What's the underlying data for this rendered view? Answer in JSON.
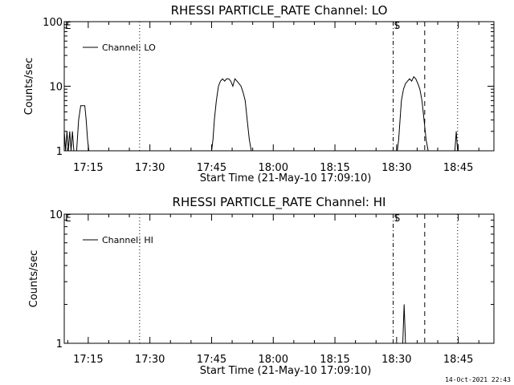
{
  "footer": "14-Oct-2021 22:43",
  "chart_data": [
    {
      "type": "line",
      "title": "RHESSI PARTICLE_RATE Channel: LO",
      "xlabel": "Start Time (21-May-10 17:09:10)",
      "ylabel": "Counts/sec",
      "yscale": "log",
      "ylim": [
        1,
        100
      ],
      "xlim": [
        "17:09:10",
        "18:53:40"
      ],
      "y_ticks": [
        {
          "value": 1,
          "label": "1"
        },
        {
          "value": 10,
          "label": "10"
        },
        {
          "value": 100,
          "label": "100"
        }
      ],
      "x_ticks": [
        "17:15",
        "17:30",
        "17:45",
        "18:00",
        "18:15",
        "18:30",
        "18:45"
      ],
      "legend_position": "top-left",
      "series": [
        {
          "name": "Channel: LO",
          "x": [
            "17:09:10",
            "17:09:30",
            "17:09:50",
            "17:10:10",
            "17:10:30",
            "17:10:50",
            "17:11:10",
            "17:11:30",
            "17:11:50",
            "17:12:10",
            "17:12:40",
            "17:13:10",
            "17:13:40",
            "17:14:10",
            "17:14:30",
            "17:14:50",
            "17:15:10",
            "17:15:30",
            "17:45:00",
            "17:45:20",
            "17:45:40",
            "17:46:10",
            "17:46:40",
            "17:47:10",
            "17:47:40",
            "17:48:10",
            "17:48:40",
            "17:49:10",
            "17:49:40",
            "17:50:10",
            "17:50:40",
            "17:51:10",
            "17:51:40",
            "17:52:10",
            "17:52:40",
            "17:53:10",
            "17:53:40",
            "17:54:10",
            "17:54:40",
            "17:55:10",
            "17:55:40",
            "17:56:10",
            "17:56:40",
            "17:57:10",
            "17:57:40",
            "17:58:10",
            "17:58:40",
            "18:30:10",
            "18:30:30",
            "18:30:50",
            "18:31:10",
            "18:31:40",
            "18:32:10",
            "18:32:40",
            "18:33:10",
            "18:33:40",
            "18:34:10",
            "18:34:40",
            "18:35:10",
            "18:35:40",
            "18:36:10",
            "18:36:40",
            "18:37:10",
            "18:37:40",
            "18:38:10",
            "18:38:30",
            "18:44:10",
            "18:44:30",
            "18:44:50",
            "18:45:10"
          ],
          "values": [
            2,
            1,
            2,
            1,
            2,
            1,
            2,
            1,
            1,
            1,
            3,
            5,
            5,
            5,
            3,
            1.5,
            1,
            1,
            1,
            1.5,
            3,
            6,
            10,
            12,
            13,
            12,
            13,
            13,
            12,
            10,
            13,
            12,
            11,
            10,
            8,
            6,
            3,
            1.5,
            1,
            1,
            1,
            1,
            1,
            1,
            1,
            1,
            1,
            1,
            1.5,
            3,
            6,
            9,
            11,
            12,
            13,
            12,
            14,
            13,
            11,
            9,
            6,
            3,
            1.5,
            1,
            1,
            1,
            1,
            2,
            1,
            1
          ]
        }
      ],
      "vertical_markers": [
        {
          "x": "17:27:30",
          "style": "dotted",
          "label": ""
        },
        {
          "x": "18:29:10",
          "style": "dashdot",
          "label": "S"
        },
        {
          "x": "18:36:50",
          "style": "dashed",
          "label": ""
        },
        {
          "x": "18:44:50",
          "style": "dotted",
          "label": ""
        }
      ],
      "corner_label": "E"
    },
    {
      "type": "line",
      "title": "RHESSI PARTICLE_RATE Channel: HI",
      "xlabel": "Start Time (21-May-10 17:09:10)",
      "ylabel": "Counts/sec",
      "yscale": "log",
      "ylim": [
        1,
        10
      ],
      "xlim": [
        "17:09:10",
        "18:53:40"
      ],
      "y_ticks": [
        {
          "value": 1,
          "label": "1"
        },
        {
          "value": 10,
          "label": "10"
        }
      ],
      "x_ticks": [
        "17:15",
        "17:30",
        "17:45",
        "18:00",
        "18:15",
        "18:30",
        "18:45"
      ],
      "legend_position": "top-left",
      "series": [
        {
          "name": "Channel: HI",
          "x": [
            "18:31:30",
            "18:31:50",
            "18:32:10",
            "18:32:30"
          ],
          "values": [
            1,
            2,
            1,
            1
          ]
        }
      ],
      "vertical_markers": [
        {
          "x": "17:27:30",
          "style": "dotted",
          "label": ""
        },
        {
          "x": "18:29:10",
          "style": "dashdot",
          "label": "S"
        },
        {
          "x": "18:36:50",
          "style": "dashed",
          "label": ""
        },
        {
          "x": "18:44:50",
          "style": "dotted",
          "label": ""
        }
      ],
      "corner_label": "E"
    }
  ]
}
